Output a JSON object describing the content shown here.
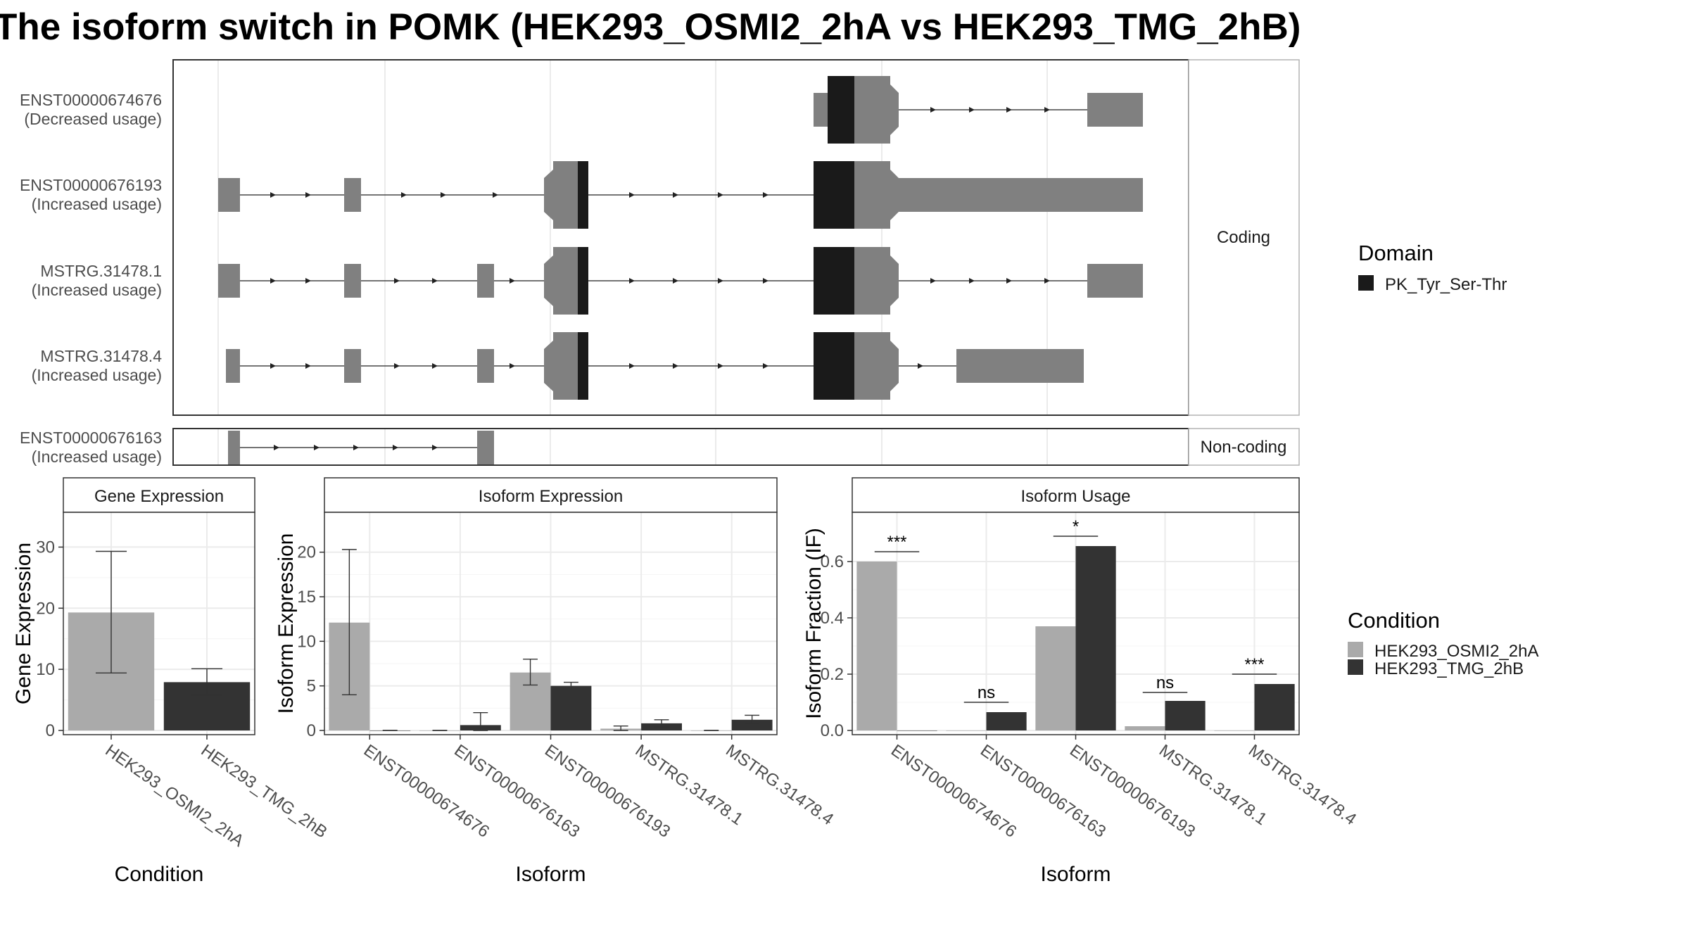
{
  "title": "The isoform switch in POMK (HEK293_OSMI2_2hA vs HEK293_TMG_2hB)",
  "colors": {
    "exon": "#808080",
    "domain": "#1a1a1a",
    "cond_a": "#aaaaaa",
    "cond_b": "#333333",
    "grid": "#ebebeb",
    "strip": "#ffffff"
  },
  "structure": {
    "coding_label": "Coding",
    "noncoding_label": "Non-coding",
    "transcripts": [
      {
        "id": "ENST00000674676",
        "usage": "(Decreased usage)",
        "group": "coding"
      },
      {
        "id": "ENST00000676193",
        "usage": "(Increased usage)",
        "group": "coding"
      },
      {
        "id": "MSTRG.31478.1",
        "usage": "(Increased usage)",
        "group": "coding"
      },
      {
        "id": "MSTRG.31478.4",
        "usage": "(Increased usage)",
        "group": "coding"
      },
      {
        "id": "ENST00000676163",
        "usage": "(Increased usage)",
        "group": "noncoding"
      }
    ]
  },
  "legend_domain": {
    "title": "Domain",
    "items": [
      {
        "label": "PK_Tyr_Ser-Thr",
        "color": "#1a1a1a"
      }
    ]
  },
  "legend_condition": {
    "title": "Condition",
    "items": [
      {
        "label": "HEK293_OSMI2_2hA",
        "color": "#aaaaaa"
      },
      {
        "label": "HEK293_TMG_2hB",
        "color": "#333333"
      }
    ]
  },
  "chart_data": [
    {
      "type": "bar",
      "title": "Gene Expression",
      "xlabel": "Condition",
      "ylabel": "Gene Expression",
      "ylim": [
        0,
        35
      ],
      "yticks": [
        0,
        10,
        20,
        30
      ],
      "categories": [
        "HEK293_OSMI2_2hA",
        "HEK293_TMG_2hB"
      ],
      "values": [
        19.3,
        7.9
      ],
      "error_low": [
        9.4,
        5.8
      ],
      "error_high": [
        29.3,
        10.1
      ]
    },
    {
      "type": "bar",
      "title": "Isoform Expression",
      "xlabel": "Isoform",
      "ylabel": "Isoform Expression",
      "ylim": [
        0,
        24
      ],
      "yticks": [
        0,
        5,
        10,
        15,
        20
      ],
      "categories": [
        "ENST00000674676",
        "ENST00000676163",
        "ENST00000676193",
        "MSTRG.31478.1",
        "MSTRG.31478.4"
      ],
      "series": [
        {
          "name": "HEK293_OSMI2_2hA",
          "values": [
            12.1,
            0,
            6.5,
            0.2,
            0
          ],
          "error_low": [
            4.0,
            0,
            5.1,
            0,
            0
          ],
          "error_high": [
            20.3,
            0,
            8.0,
            0.5,
            0
          ]
        },
        {
          "name": "HEK293_TMG_2hB",
          "values": [
            0,
            0.6,
            5.0,
            0.8,
            1.2
          ],
          "error_low": [
            0,
            0,
            4.6,
            0.4,
            0.8
          ],
          "error_high": [
            0,
            2.0,
            5.4,
            1.2,
            1.7
          ]
        }
      ]
    },
    {
      "type": "bar",
      "title": "Isoform Usage",
      "xlabel": "Isoform",
      "ylabel": "Isoform Fraction (IF)",
      "ylim": [
        0,
        0.76
      ],
      "yticks": [
        "0.0",
        "0.2",
        "0.4",
        "0.6"
      ],
      "categories": [
        "ENST00000674676",
        "ENST00000676163",
        "ENST00000676193",
        "MSTRG.31478.1",
        "MSTRG.31478.4"
      ],
      "series": [
        {
          "name": "HEK293_OSMI2_2hA",
          "values": [
            0.6,
            0,
            0.37,
            0.015,
            0
          ]
        },
        {
          "name": "HEK293_TMG_2hB",
          "values": [
            0,
            0.065,
            0.655,
            0.105,
            0.165
          ]
        }
      ],
      "significance": [
        "***",
        "ns",
        "*",
        "ns",
        "***"
      ],
      "significance_y": [
        0.635,
        0.1,
        0.69,
        0.135,
        0.2
      ]
    }
  ]
}
